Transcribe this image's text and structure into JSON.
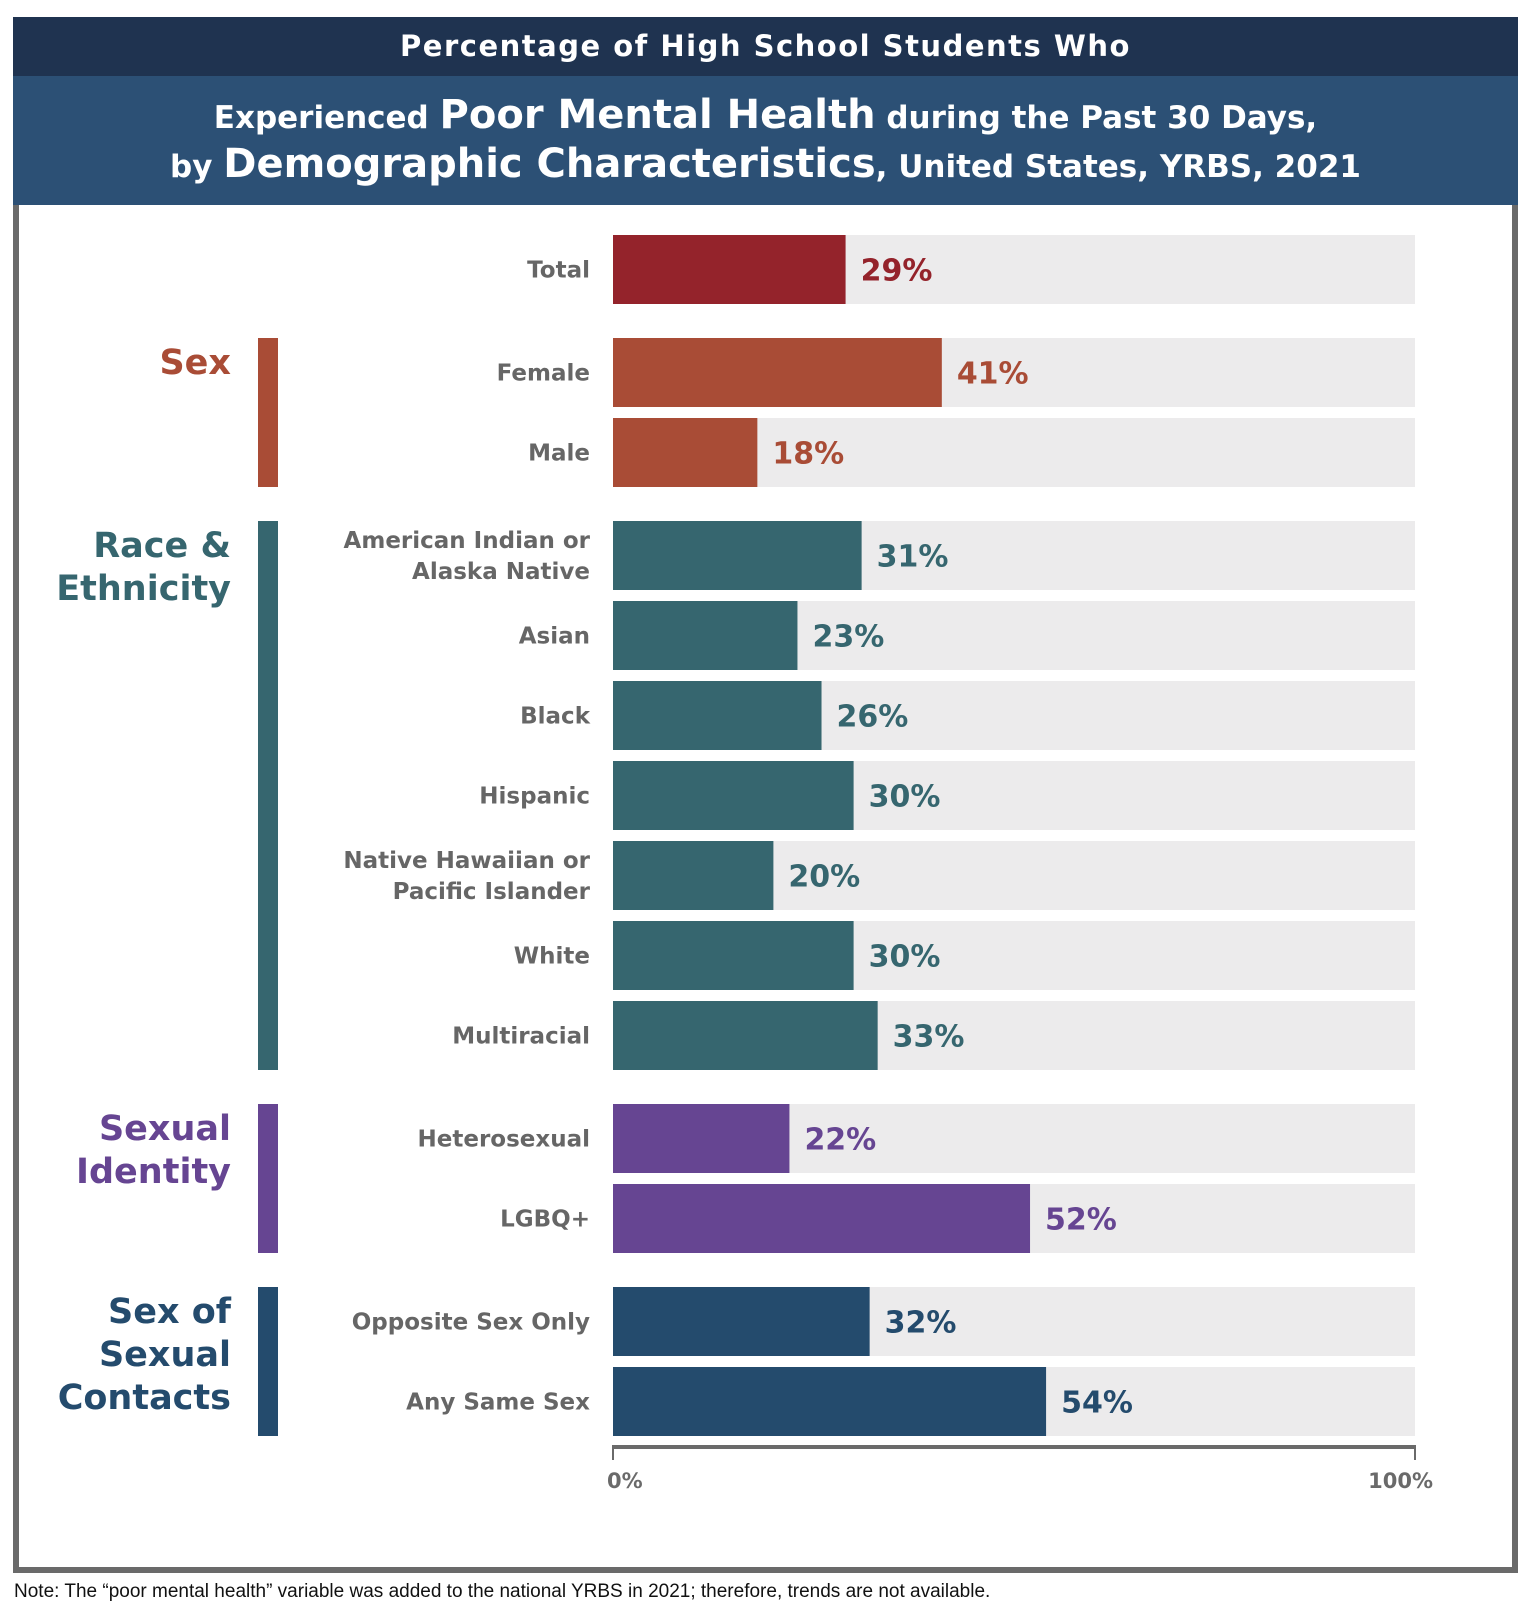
{
  "header": {
    "line1": "Percentage of High School Students Who",
    "line2_pre": "Experienced ",
    "line2_bold": "Poor Mental Health",
    "line2_post": " during the Past 30 Days,",
    "line3_pre": "by ",
    "line3_bold": "Demographic Characteristics",
    "line3_post": ", United States, YRBS, 2021"
  },
  "note": "Note: The “poor mental health” variable was added to the national YRBS in 2021; therefore, trends are not available.",
  "colors": {
    "total": "#94232b",
    "sex": "#a94c36",
    "race": "#36666f",
    "sexual_identity": "#664592",
    "sexual_contacts": "#244b6d",
    "track": "#ecebec",
    "label": "#666666",
    "axis": "#6a6a6a"
  },
  "chart_data": {
    "type": "bar",
    "orientation": "horizontal",
    "title": "Percentage of High School Students Who Experienced Poor Mental Health during the Past 30 Days, by Demographic Characteristics, United States, YRBS, 2021",
    "xlabel": "",
    "ylabel": "",
    "xlim": [
      0,
      100
    ],
    "axis_ticks": [
      "0%",
      "100%"
    ],
    "unit": "%",
    "groups": [
      {
        "name": "",
        "color_key": "total",
        "items": [
          {
            "label": [
              "Total"
            ],
            "value": 29
          }
        ]
      },
      {
        "name": [
          "Sex"
        ],
        "color_key": "sex",
        "items": [
          {
            "label": [
              "Female"
            ],
            "value": 41
          },
          {
            "label": [
              "Male"
            ],
            "value": 18
          }
        ]
      },
      {
        "name": [
          "Race &",
          "Ethnicity"
        ],
        "color_key": "race",
        "items": [
          {
            "label": [
              "American Indian or",
              "Alaska Native"
            ],
            "value": 31
          },
          {
            "label": [
              "Asian"
            ],
            "value": 23
          },
          {
            "label": [
              "Black"
            ],
            "value": 26
          },
          {
            "label": [
              "Hispanic"
            ],
            "value": 30
          },
          {
            "label": [
              "Native Hawaiian or",
              "Pacific Islander"
            ],
            "value": 20
          },
          {
            "label": [
              "White"
            ],
            "value": 30
          },
          {
            "label": [
              "Multiracial"
            ],
            "value": 33
          }
        ]
      },
      {
        "name": [
          "Sexual",
          "Identity"
        ],
        "color_key": "sexual_identity",
        "items": [
          {
            "label": [
              "Heterosexual"
            ],
            "value": 22
          },
          {
            "label": [
              "LGBQ+"
            ],
            "value": 52
          }
        ]
      },
      {
        "name": [
          "Sex of",
          "Sexual",
          "Contacts"
        ],
        "color_key": "sexual_contacts",
        "items": [
          {
            "label": [
              "Opposite Sex Only"
            ],
            "value": 32
          },
          {
            "label": [
              "Any Same Sex"
            ],
            "value": 54
          }
        ]
      }
    ]
  }
}
